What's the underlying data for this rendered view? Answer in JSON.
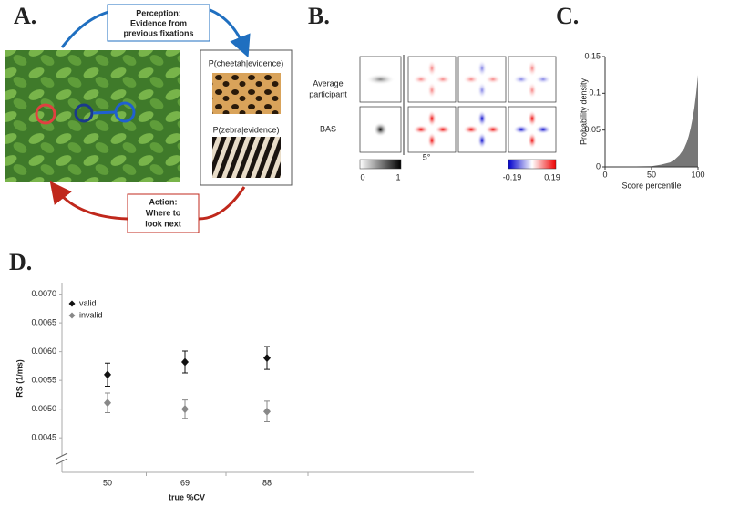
{
  "panel_labels": [
    "A.",
    "B.",
    "C.",
    "D."
  ],
  "panel_a": {
    "perception": [
      "Perception:",
      "Evidence from",
      "previous fixations"
    ],
    "action": [
      "Action:",
      "Where to",
      "look next"
    ],
    "cheetah": "P(cheetah|evidence)",
    "zebra": "P(zebra|evidence)"
  },
  "panel_b": {
    "rows": [
      [
        "Average",
        "participant"
      ],
      [
        "BAS"
      ]
    ],
    "gray_bar": [
      "0",
      "1"
    ],
    "color_bar": [
      "-0.19",
      "0.19"
    ],
    "scale": "5°"
  },
  "chart_data": [
    {
      "type": "area",
      "x_label": "Score percentile",
      "y_label": "Probability density",
      "color": "#777777",
      "x": [
        0,
        50,
        60,
        70,
        75,
        80,
        85,
        88,
        90,
        92,
        94,
        96,
        98,
        100
      ],
      "values": [
        0,
        0.001,
        0.003,
        0.006,
        0.01,
        0.016,
        0.025,
        0.034,
        0.042,
        0.052,
        0.065,
        0.08,
        0.1,
        0.125
      ],
      "xlim": [
        0,
        100
      ],
      "xticks": [
        0,
        50,
        100
      ],
      "ylim": [
        0,
        0.15
      ],
      "yticks": [
        0,
        0.05,
        0.1,
        0.15
      ]
    },
    {
      "type": "errorbar",
      "x_label": "true %CV",
      "y_label": "RS (1/ms)",
      "categories": [
        "50",
        "69",
        "88"
      ],
      "series": [
        {
          "name": "valid",
          "color": "#111111",
          "values": [
            0.0056,
            0.00582,
            0.00589
          ],
          "errors": [
            0.0002,
            0.00019,
            0.0002
          ]
        },
        {
          "name": "invalid",
          "color": "#888888",
          "values": [
            0.00511,
            0.005,
            0.00496
          ],
          "errors": [
            0.00017,
            0.00016,
            0.00018
          ]
        }
      ],
      "ylim": [
        0.0039,
        0.0072
      ],
      "yticks": [
        {
          "value": 0.0045,
          "label": "0.0045"
        },
        {
          "value": 0.005,
          "label": "0.0050"
        },
        {
          "value": 0.0055,
          "label": "0.0055"
        },
        {
          "value": 0.006,
          "label": "0.0060"
        },
        {
          "value": 0.0065,
          "label": "0.0065"
        },
        {
          "value": 0.007,
          "label": "0.0070"
        }
      ]
    }
  ]
}
